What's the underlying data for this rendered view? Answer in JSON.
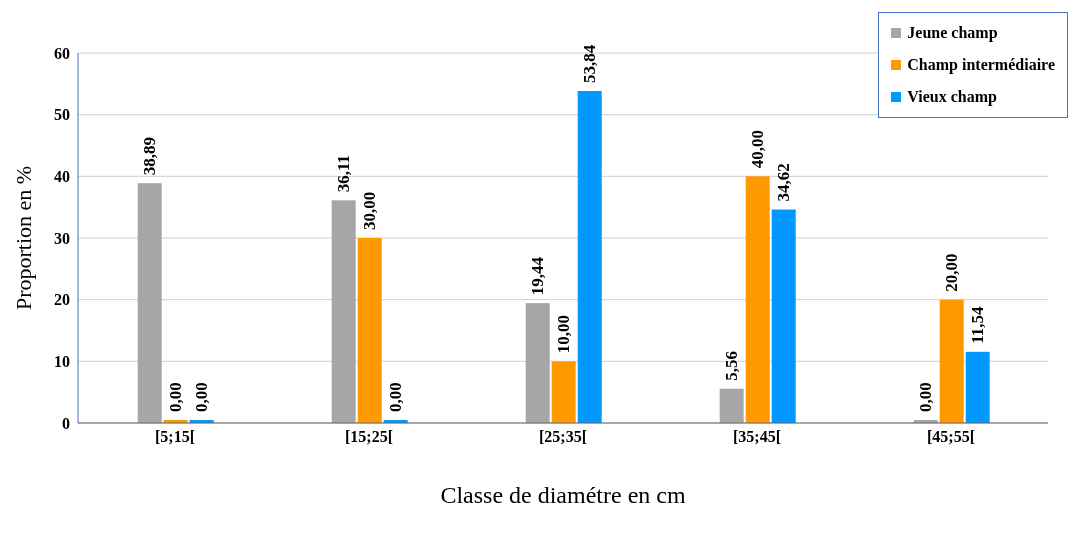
{
  "chart_data": {
    "type": "bar",
    "xlabel": "Classe de diamétre en cm",
    "ylabel": "Proportion  en %",
    "categories": [
      "[5;15[",
      "[15;25[",
      "[25;35[",
      "[35;45[",
      "[45;55["
    ],
    "series": [
      {
        "name": "Jeune champ",
        "color": "#a6a6a6",
        "values": [
          38.89,
          36.11,
          19.44,
          5.56,
          0
        ],
        "value_labels": [
          "38,89",
          "36,11",
          "19,44",
          "5,56",
          "0,00"
        ]
      },
      {
        "name": "Champ intermédiaire",
        "color": "#ff9900",
        "values": [
          0,
          30,
          10,
          40,
          20
        ],
        "value_labels": [
          "0,00",
          "30,00",
          "10,00",
          "40,00",
          "20,00"
        ]
      },
      {
        "name": "Vieux champ",
        "color": "#0099ff",
        "values": [
          0,
          0,
          53.84,
          34.62,
          11.54
        ],
        "value_labels": [
          "0,00",
          "0,00",
          "53,84",
          "34,62",
          "11,54"
        ]
      }
    ],
    "ylim": [
      0,
      60
    ],
    "yticks": [
      0,
      10,
      20,
      30,
      40,
      50,
      60
    ],
    "grid": "y",
    "legend": "top right"
  }
}
